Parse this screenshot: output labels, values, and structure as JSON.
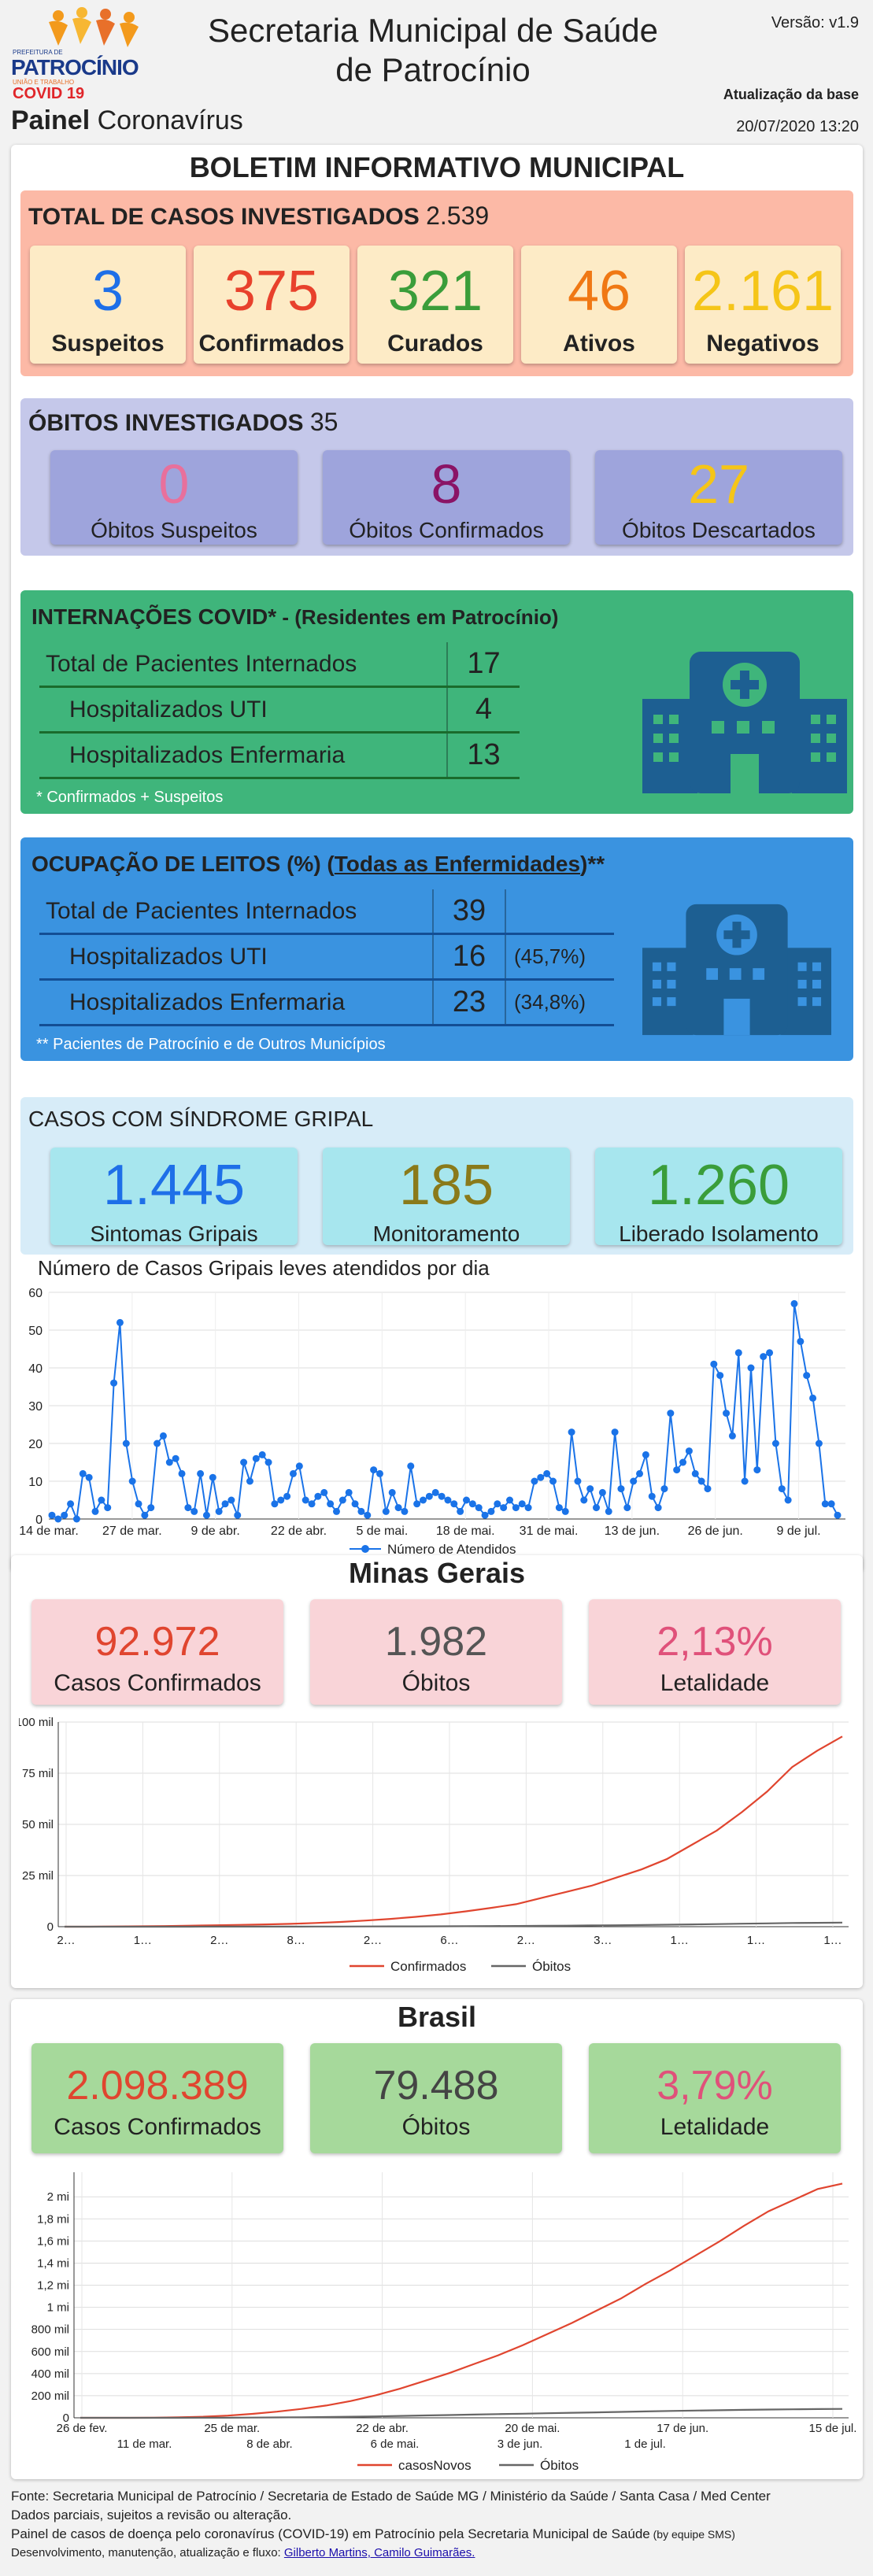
{
  "header": {
    "logo_text": "PATROCÍNIO",
    "logo_subtext": "PREFEITURA DE",
    "logo_tagline": "UNIÃO E TRABALHO",
    "covid_label": "COVID 19",
    "title_line1": "Secretaria Municipal de Saúde",
    "title_line2": "de Patrocínio",
    "version": "Versão: v1.9",
    "panel_bold": "Painel",
    "panel_rest": " Coronavírus",
    "update_label": "Atualização da base",
    "update_value": "20/07/2020 13:20"
  },
  "bulletin": {
    "title": "BOLETIM INFORMATIVO MUNICIPAL",
    "total_label": "TOTAL DE CASOS INVESTIGADOS",
    "total_value": "2.539",
    "tiles": [
      {
        "value": "3",
        "label": "Suspeitos",
        "color": "#1e6fe8"
      },
      {
        "value": "375",
        "label": "Confirmados",
        "color": "#e8412c"
      },
      {
        "value": "321",
        "label": "Curados",
        "color": "#3a9d3a"
      },
      {
        "value": "46",
        "label": "Ativos",
        "color": "#f07814"
      },
      {
        "value": "2.161",
        "label": "Negativos",
        "color": "#f5c518"
      }
    ]
  },
  "deaths": {
    "label": "ÓBITOS INVESTIGADOS",
    "value": "35",
    "tiles": [
      {
        "value": "0",
        "label": "Óbitos Suspeitos",
        "color": "#e8709c"
      },
      {
        "value": "8",
        "label": "Óbitos Confirmados",
        "color": "#8a1466"
      },
      {
        "value": "27",
        "label": "Óbitos Descartados",
        "color": "#f5c518"
      }
    ]
  },
  "hospital": {
    "title_bold": "INTERNAÇÕES COVID*",
    "title_rest": " - (Residentes em Patrocínio)",
    "rows": [
      {
        "label": "Total de Pacientes Internados",
        "value": "17"
      },
      {
        "label": "Hospitalizados UTI",
        "value": "4"
      },
      {
        "label": "Hospitalizados Enfermaria",
        "value": "13"
      }
    ],
    "note": "* Confirmados + Suspeitos"
  },
  "beds": {
    "title_a": "OCUPAÇÃO DE LEITOS (%) (",
    "title_b": "Todas as Enfermidades",
    "title_c": ")**",
    "rows": [
      {
        "label": "Total de Pacientes Internados",
        "value": "39",
        "pct": ""
      },
      {
        "label": "Hospitalizados UTI",
        "value": "16",
        "pct": "(45,7%)"
      },
      {
        "label": "Hospitalizados Enfermaria",
        "value": "23",
        "pct": "(34,8%)"
      }
    ],
    "note": "** Pacientes de Patrocínio e de Outros Municípios"
  },
  "flu": {
    "title": "CASOS COM SÍNDROME GRIPAL",
    "tiles": [
      {
        "value": "1.445",
        "label": "Sintomas Gripais",
        "color": "#1e6fe8"
      },
      {
        "value": "185",
        "label": "Monitoramento",
        "color": "#8a7a1a"
      },
      {
        "value": "1.260",
        "label": "Liberado Isolamento",
        "color": "#3a9d3a"
      }
    ]
  },
  "chart_data": [
    {
      "type": "line",
      "title": "Número de Casos Gripais leves atendidos por dia",
      "ylim": [
        0,
        60
      ],
      "yticks": [
        0,
        10,
        20,
        30,
        40,
        50,
        60
      ],
      "xticks": [
        "14 de mar.",
        "27 de mar.",
        "9 de abr.",
        "22 de abr.",
        "5 de mai.",
        "18 de mai.",
        "31 de mai.",
        "13 de jun.",
        "26 de jun.",
        "9 de jul."
      ],
      "series": [
        {
          "name": "Número de Atendidos",
          "color": "#1a73e8",
          "values": [
            1,
            0,
            1,
            4,
            0,
            12,
            11,
            2,
            5,
            3,
            36,
            52,
            20,
            10,
            4,
            1,
            3,
            20,
            22,
            15,
            16,
            12,
            3,
            2,
            12,
            1,
            11,
            2,
            4,
            5,
            1,
            15,
            10,
            16,
            17,
            15,
            4,
            5,
            6,
            12,
            14,
            5,
            4,
            6,
            7,
            4,
            2,
            5,
            7,
            4,
            2,
            1,
            13,
            12,
            2,
            7,
            3,
            2,
            14,
            4,
            5,
            6,
            7,
            6,
            5,
            4,
            2,
            5,
            4,
            3,
            1,
            2,
            4,
            3,
            5,
            3,
            4,
            3,
            10,
            11,
            12,
            10,
            3,
            2,
            23,
            10,
            5,
            8,
            3,
            7,
            2,
            23,
            8,
            3,
            10,
            12,
            17,
            6,
            3,
            8,
            28,
            13,
            15,
            18,
            12,
            10,
            8,
            41,
            38,
            28,
            22,
            44,
            10,
            40,
            13,
            43,
            44,
            20,
            8,
            5,
            57,
            47,
            38,
            32,
            20,
            4,
            4,
            1
          ]
        }
      ]
    },
    {
      "type": "line",
      "title": "",
      "ylim": [
        0,
        100000
      ],
      "yticks": [
        "0",
        "25 mil",
        "50 mil",
        "75 mil",
        "100 mil"
      ],
      "xticks": [
        "2…",
        "1…",
        "2…",
        "8…",
        "2…",
        "6…",
        "2…",
        "3…",
        "1…",
        "1…",
        "1…"
      ],
      "series": [
        {
          "name": "Confirmados",
          "color": "#e0452f",
          "values": [
            0,
            0,
            100,
            200,
            300,
            500,
            700,
            900,
            1100,
            1400,
            1800,
            2300,
            3000,
            3800,
            4800,
            6000,
            7500,
            9200,
            11000,
            14000,
            17000,
            20000,
            24000,
            28000,
            33000,
            40000,
            47000,
            56000,
            66000,
            78000,
            86000,
            92972
          ]
        },
        {
          "name": "Óbitos",
          "color": "#666666",
          "values": [
            0,
            0,
            0,
            0,
            5,
            10,
            20,
            30,
            40,
            55,
            70,
            90,
            110,
            140,
            170,
            210,
            250,
            300,
            360,
            430,
            510,
            600,
            700,
            820,
            960,
            1100,
            1280,
            1450,
            1620,
            1800,
            1900,
            1982
          ]
        }
      ]
    },
    {
      "type": "line",
      "title": "",
      "ylim": [
        0,
        2200000
      ],
      "yticks": [
        "0",
        "200 mil",
        "400 mil",
        "600 mil",
        "800 mil",
        "1 mi",
        "1,2 mi",
        "1,4 mi",
        "1,6 mi",
        "1,8 mi",
        "2 mi"
      ],
      "xticks_top": [
        "26 de fev.",
        "25 de mar.",
        "22 de abr.",
        "20 de mai.",
        "17 de jun.",
        "15 de jul."
      ],
      "xticks_bottom": [
        "11 de mar.",
        "8 de abr.",
        "6 de mai.",
        "3 de jun.",
        "1 de jul."
      ],
      "series": [
        {
          "name": "casosNovos",
          "color": "#e0452f",
          "values": [
            0,
            0,
            0,
            1000,
            5000,
            10000,
            20000,
            35000,
            55000,
            80000,
            110000,
            150000,
            200000,
            260000,
            330000,
            400000,
            480000,
            560000,
            650000,
            750000,
            850000,
            960000,
            1070000,
            1200000,
            1320000,
            1450000,
            1580000,
            1720000,
            1850000,
            1950000,
            2050000,
            2098389
          ]
        },
        {
          "name": "Óbitos",
          "color": "#666666",
          "values": [
            0,
            0,
            0,
            0,
            100,
            500,
            1000,
            2000,
            3500,
            5000,
            7000,
            10000,
            13000,
            17000,
            21000,
            25000,
            29000,
            33000,
            37000,
            41000,
            45000,
            49000,
            53000,
            57000,
            61000,
            65000,
            68000,
            71000,
            74000,
            76000,
            78000,
            79488
          ]
        }
      ]
    }
  ],
  "mg": {
    "title": "Minas Gerais",
    "tiles": [
      {
        "value": "92.972",
        "label": "Casos Confirmados",
        "color": "#e0452f"
      },
      {
        "value": "1.982",
        "label": "Óbitos",
        "color": "#555555"
      },
      {
        "value": "2,13%",
        "label": "Letalidade",
        "color": "#e0517a"
      }
    ]
  },
  "br": {
    "title": "Brasil",
    "tiles": [
      {
        "value": "2.098.389",
        "label": "Casos Confirmados",
        "color": "#e0452f"
      },
      {
        "value": "79.488",
        "label": "Óbitos",
        "color": "#444444"
      },
      {
        "value": "3,79%",
        "label": "Letalidade",
        "color": "#e0517a"
      }
    ]
  },
  "footer": {
    "line1": "Fonte: Secretaria Municipal de Patrocínio / Secretaria de Estado de Saúde MG / Ministério da Saúde / Santa Casa / Med Center",
    "line2": "Dados parciais, sujeitos a revisão ou alteração.",
    "line3": "Painel de casos de doença pelo coronavírus (COVID-19) em Patrocínio pela Secretaria Municipal de Saúde",
    "line3_small": " (by equipe SMS)",
    "line4": "Desenvolvimento, manutenção, atualização e fluxo: ",
    "line4_link": "Gilberto Martins, Camilo Guimarães."
  },
  "colors": {
    "bulletin_bg": "#fcb9a6",
    "deaths_bg": "#c5c8ea",
    "hospital_bg": "#3fb57b",
    "beds_bg": "#3a93e0",
    "flu_bg": "#d7ecf8",
    "mg_tile_bg": "#f9d4d8",
    "br_tile_bg": "#a6d99b",
    "building": "#1d5f92"
  }
}
